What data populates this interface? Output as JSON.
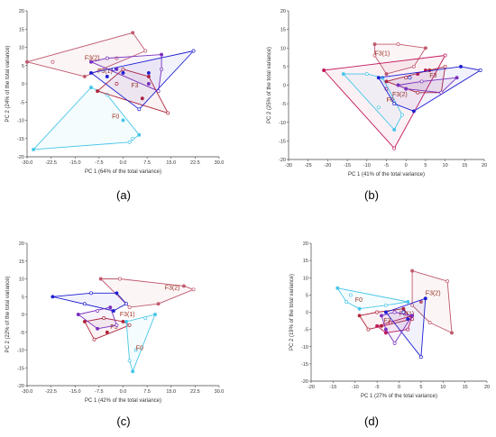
{
  "colors": {
    "red": "#b0253a",
    "pink": "#c2185b",
    "blue": "#1e1ed2",
    "purple": "#7a2fc0",
    "cyan": "#49c6e8",
    "rose": "#c05a6e",
    "label": "#9a3020"
  },
  "chart_data": [
    {
      "type": "scatter",
      "caption": "(a)",
      "xlabel": "PC 1 (64% of the total variance)",
      "ylabel": "PC 2 (24% of the total variance)",
      "xlim": [
        -30,
        30
      ],
      "ylim": [
        -20,
        20
      ],
      "xticks": [
        "-30.0",
        "-22.5",
        "-15.0",
        "-7.5",
        "0.0",
        "7.5",
        "15.0",
        "22.5",
        "30.0"
      ],
      "yticks": [
        "20",
        "15",
        "10",
        "5",
        "0",
        "-5",
        "-10",
        "-15",
        "-20"
      ],
      "groups": [
        {
          "label": "F0",
          "label_at": [
            -3.5,
            -9.5
          ],
          "color": "cyan",
          "points": [
            [
              -10,
              -1
            ],
            [
              -5,
              -3
            ],
            [
              0,
              -10
            ],
            [
              3,
              -15
            ],
            [
              5,
              -14
            ],
            [
              2,
              -16
            ],
            [
              -28,
              -18
            ]
          ]
        },
        {
          "label": "F3(2)",
          "label_at": [
            -12,
            6.5
          ],
          "color": "rose",
          "points": [
            [
              -30,
              6
            ],
            [
              -22,
              6
            ],
            [
              3,
              14
            ],
            [
              7,
              9
            ],
            [
              -12,
              2
            ],
            [
              -2,
              7
            ]
          ]
        },
        {
          "label": "F3(1)",
          "label_at": [
            -8,
            3
          ],
          "color": "purple",
          "points": [
            [
              -10,
              6
            ],
            [
              -5,
              7
            ],
            [
              12,
              8
            ],
            [
              12,
              4
            ],
            [
              8,
              0
            ],
            [
              11,
              -2
            ],
            [
              -2,
              4
            ]
          ]
        },
        {
          "label": "F3",
          "label_at": [
            2.5,
            -1
          ],
          "color": "red",
          "points": [
            [
              -8,
              -2
            ],
            [
              -2,
              0
            ],
            [
              8,
              2
            ],
            [
              14,
              -8
            ],
            [
              6,
              -4
            ],
            [
              0,
              4
            ]
          ]
        },
        {
          "label": "",
          "color": "blue",
          "points": [
            [
              -10,
              3
            ],
            [
              -3,
              4
            ],
            [
              0,
              3
            ],
            [
              22,
              9
            ],
            [
              8,
              3
            ],
            [
              5,
              -7
            ],
            [
              -5,
              2
            ]
          ]
        }
      ]
    },
    {
      "type": "scatter",
      "caption": "(b)",
      "xlabel": "PC 1 (41% of the total variance)",
      "ylabel": "PC 2 (25% of the total variance)",
      "xlim": [
        -30,
        20
      ],
      "ylim": [
        -20,
        20
      ],
      "xticks": [
        "-30",
        "-25",
        "-20",
        "-15",
        "-10",
        "-5",
        "0",
        "5",
        "10",
        "15",
        "20"
      ],
      "yticks": [
        "20",
        "15",
        "10",
        "5",
        "0",
        "-5",
        "-10",
        "-15",
        "-20"
      ],
      "groups": [
        {
          "label": "F3(1)",
          "label_at": [
            -8,
            8
          ],
          "color": "rose",
          "points": [
            [
              -8,
              11
            ],
            [
              -2,
              11
            ],
            [
              5,
              10
            ],
            [
              2,
              5
            ],
            [
              -5,
              3
            ],
            [
              -8,
              8
            ]
          ]
        },
        {
          "label": "F3(2)",
          "label_at": [
            -3.5,
            -3
          ],
          "color": "pink",
          "points": [
            [
              -21,
              4
            ],
            [
              -3,
              -17
            ],
            [
              5,
              4
            ],
            [
              10,
              8
            ],
            [
              3,
              3
            ],
            [
              -5,
              -1
            ]
          ]
        },
        {
          "label": "F0",
          "label_at": [
            -5,
            -4.5
          ],
          "color": "cyan",
          "points": [
            [
              -16,
              3
            ],
            [
              -7,
              -6
            ],
            [
              -3,
              -12
            ],
            [
              -1,
              -8
            ],
            [
              -6,
              2
            ],
            [
              -10,
              3
            ]
          ]
        },
        {
          "label": "F3",
          "label_at": [
            6,
            2
          ],
          "color": "red",
          "points": [
            [
              -5,
              1
            ],
            [
              0,
              2
            ],
            [
              6,
              4
            ],
            [
              10,
              5
            ],
            [
              9,
              -2
            ],
            [
              3,
              -2
            ]
          ]
        },
        {
          "label": "",
          "color": "blue",
          "points": [
            [
              -7,
              2
            ],
            [
              1,
              2
            ],
            [
              14,
              5
            ],
            [
              19,
              4
            ],
            [
              2,
              -7
            ],
            [
              -3,
              -5
            ]
          ]
        },
        {
          "label": "",
          "color": "purple",
          "points": [
            [
              -2,
              0
            ],
            [
              4,
              1
            ],
            [
              13,
              2
            ],
            [
              9,
              -2
            ],
            [
              0,
              -1
            ]
          ]
        }
      ]
    },
    {
      "type": "scatter",
      "caption": "(c)",
      "xlabel": "PC 1 (42% of the total variance)",
      "ylabel": "PC 2 (22% of the total variance)",
      "xlim": [
        -30,
        30
      ],
      "ylim": [
        -20,
        20
      ],
      "xticks": [
        "-30.0",
        "-22.5",
        "-15.0",
        "-7.5",
        "0.0",
        "7.5",
        "15.0",
        "22.5",
        "30.0"
      ],
      "yticks": [
        "20",
        "15",
        "10",
        "5",
        "0",
        "-5",
        "-10",
        "-15",
        "-20"
      ],
      "groups": [
        {
          "label": "F3(2)",
          "label_at": [
            13,
            7
          ],
          "color": "rose",
          "points": [
            [
              -7,
              10
            ],
            [
              -1,
              10
            ],
            [
              19,
              8
            ],
            [
              22,
              7
            ],
            [
              11,
              3
            ],
            [
              2,
              2
            ]
          ]
        },
        {
          "label": "F3(1)",
          "label_at": [
            -1,
            -0.5
          ],
          "color": "blue",
          "points": [
            [
              -22,
              5
            ],
            [
              -10,
              6
            ],
            [
              -2,
              6
            ],
            [
              1,
              3
            ],
            [
              -3,
              1
            ],
            [
              -12,
              3
            ]
          ]
        },
        {
          "label": "F3",
          "label_at": [
            -4,
            -4
          ],
          "color": "red",
          "points": [
            [
              -12,
              -2
            ],
            [
              -6,
              -1
            ],
            [
              0,
              -2
            ],
            [
              2,
              -3
            ],
            [
              -5,
              -5
            ],
            [
              -9,
              -7
            ]
          ]
        },
        {
          "label": "F0",
          "label_at": [
            4,
            -10
          ],
          "color": "cyan",
          "points": [
            [
              1,
              -2
            ],
            [
              7,
              -1
            ],
            [
              10,
              0
            ],
            [
              4,
              -10
            ],
            [
              3,
              -16
            ],
            [
              2,
              -13
            ]
          ]
        },
        {
          "label": "",
          "color": "purple",
          "points": [
            [
              -14,
              0
            ],
            [
              -8,
              1
            ],
            [
              -4,
              2
            ],
            [
              -2,
              -3
            ],
            [
              -8,
              -4
            ]
          ]
        }
      ]
    },
    {
      "type": "scatter",
      "caption": "(d)",
      "xlabel": "PC 1 (27% of the total variance)",
      "ylabel": "PC 2 (19% of the total variance)",
      "xlim": [
        -20,
        20
      ],
      "ylim": [
        -20,
        20
      ],
      "xticks": [
        "-20",
        "-15",
        "-10",
        "-5",
        "0",
        "5",
        "10",
        "15",
        "20"
      ],
      "yticks": [
        "20",
        "15",
        "10",
        "5",
        "0",
        "-5",
        "-10",
        "-15",
        "-20"
      ],
      "groups": [
        {
          "label": "F0",
          "label_at": [
            -10,
            3
          ],
          "color": "cyan",
          "points": [
            [
              -14,
              7
            ],
            [
              -11,
              5
            ],
            [
              2,
              3
            ],
            [
              -3,
              2
            ],
            [
              -9,
              1
            ],
            [
              -12,
              3
            ]
          ]
        },
        {
          "label": "F3(2)",
          "label_at": [
            6,
            5
          ],
          "color": "rose",
          "points": [
            [
              3,
              12
            ],
            [
              11,
              9
            ],
            [
              12,
              -6
            ],
            [
              7,
              -3
            ],
            [
              5,
              3
            ],
            [
              3,
              2
            ]
          ]
        },
        {
          "label": "F3(1)",
          "label_at": [
            0,
            -1
          ],
          "color": "red",
          "points": [
            [
              -9,
              -1
            ],
            [
              -5,
              0
            ],
            [
              1,
              1
            ],
            [
              3,
              -2
            ],
            [
              -4,
              -4
            ],
            [
              -7,
              -5
            ]
          ]
        },
        {
          "label": "F3",
          "label_at": [
            -3.5,
            -3
          ],
          "color": "pink",
          "points": [
            [
              -5,
              -4
            ],
            [
              -2,
              -3
            ],
            [
              3,
              -1
            ],
            [
              2,
              -5
            ],
            [
              -3,
              -6
            ]
          ]
        },
        {
          "label": "",
          "color": "blue",
          "points": [
            [
              -3,
              0
            ],
            [
              1,
              0
            ],
            [
              6,
              4
            ],
            [
              5,
              -13
            ],
            [
              2,
              -2
            ]
          ]
        },
        {
          "label": "",
          "color": "purple",
          "points": [
            [
              -4,
              -1
            ],
            [
              -1,
              0
            ],
            [
              3,
              -1
            ],
            [
              -1,
              -9
            ],
            [
              -3,
              -5
            ]
          ]
        }
      ]
    }
  ]
}
